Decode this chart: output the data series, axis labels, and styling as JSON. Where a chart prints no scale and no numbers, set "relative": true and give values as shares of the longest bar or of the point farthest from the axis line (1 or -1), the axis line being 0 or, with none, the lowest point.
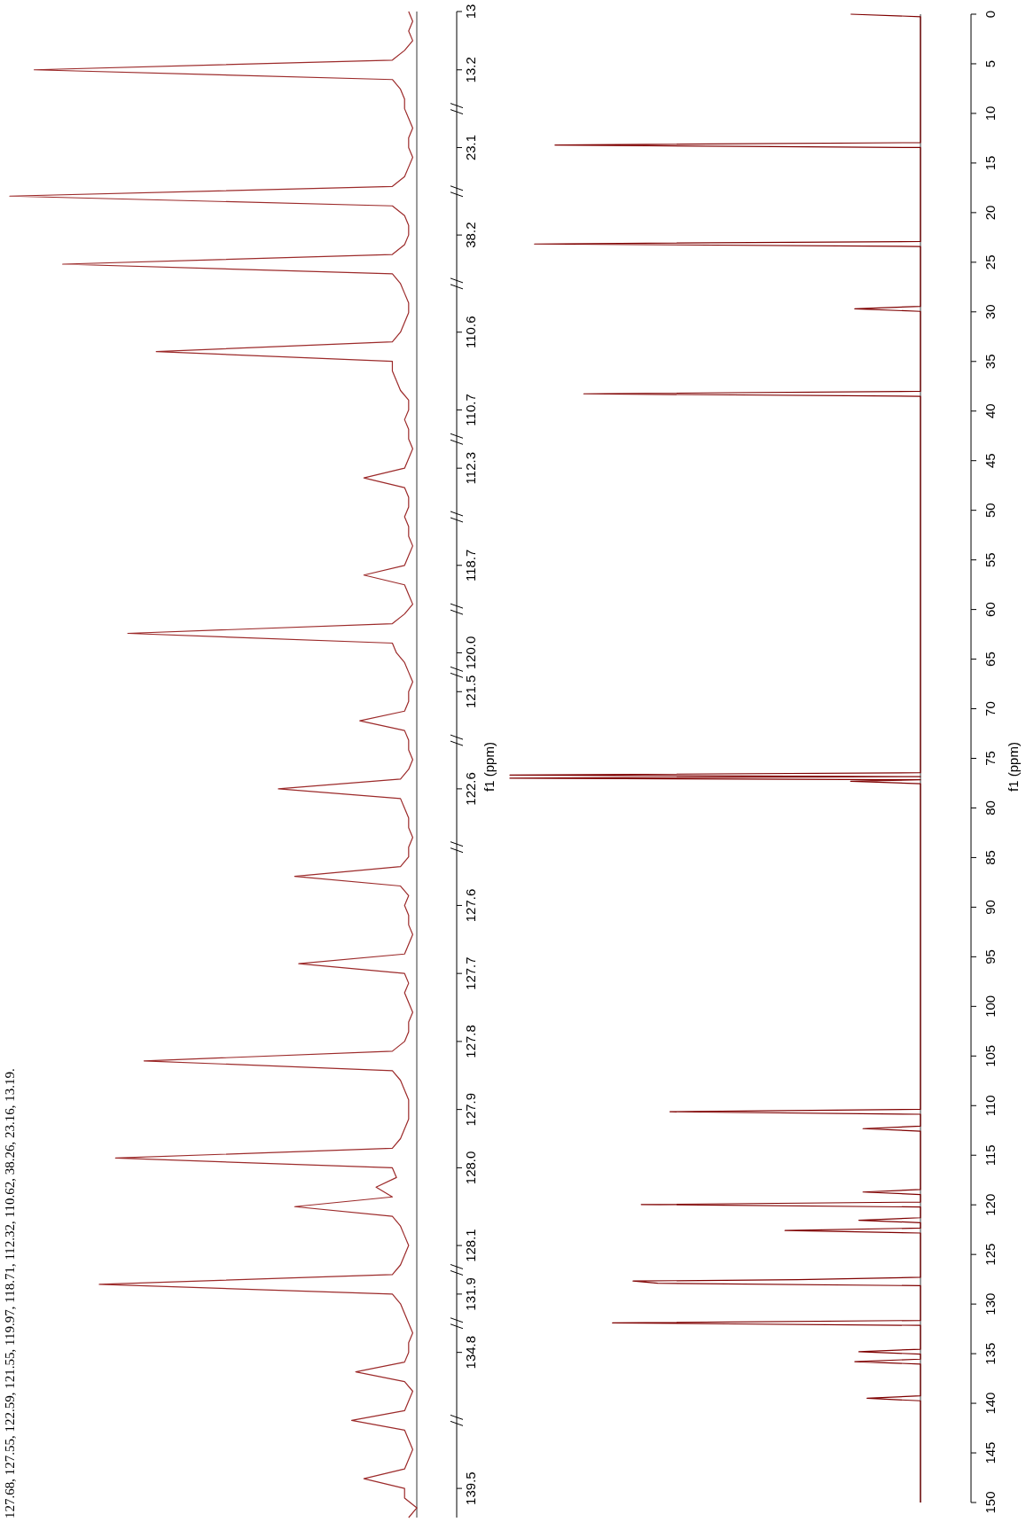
{
  "chart_data": [
    {
      "type": "line",
      "orientation": "horizontal",
      "relative": true,
      "ylabel": "f1 (ppm)",
      "color": "#9c2a2a",
      "annotations": [
        "127.68, 127.55, 122.59, 121.55, 119.97, 118.71, 112.32, 110.62, 38.26, 23.16, 13.19."
      ],
      "categories": [
        "13",
        null,
        null,
        null,
        null,
        null,
        "13.2",
        null,
        null,
        null,
        null,
        null,
        null,
        null,
        "23.1",
        null,
        null,
        null,
        null,
        null,
        null,
        null,
        null,
        "38.2",
        null,
        null,
        null,
        null,
        null,
        null,
        null,
        null,
        null,
        "110.6",
        null,
        null,
        null,
        null,
        null,
        null,
        null,
        "110.7",
        null,
        null,
        null,
        null,
        null,
        "112.3",
        null,
        null,
        null,
        null,
        null,
        null,
        null,
        null,
        null,
        "118.7",
        null,
        null,
        null,
        null,
        null,
        null,
        null,
        null,
        "120.0",
        null,
        null,
        null,
        "121.5",
        null,
        null,
        null,
        null,
        null,
        null,
        null,
        null,
        null,
        "122.6",
        null,
        null,
        null,
        null,
        null,
        null,
        null,
        null,
        null,
        null,
        null,
        "127.6",
        null,
        null,
        null,
        null,
        null,
        null,
        "127.7",
        null,
        null,
        null,
        null,
        null,
        null,
        "127.8",
        null,
        null,
        null,
        null,
        null,
        null,
        "127.9",
        null,
        null,
        null,
        null,
        null,
        "128.0",
        null,
        null,
        null,
        null,
        null,
        null,
        null,
        "128.1",
        null,
        null,
        null,
        null,
        "131.9",
        null,
        null,
        null,
        null,
        null,
        "134.8",
        null,
        null,
        null,
        null,
        null,
        null,
        null,
        null,
        null,
        null,
        null,
        null,
        null,
        "139.5",
        null,
        null,
        null
      ],
      "values": [
        -0.02,
        -0.01,
        -0.02,
        -0.01,
        -0.03,
        -0.06,
        -0.94,
        -0.06,
        -0.04,
        -0.03,
        -0.03,
        -0.02,
        -0.01,
        -0.02,
        -0.02,
        -0.01,
        -0.02,
        -0.03,
        -0.06,
        -1.0,
        -0.06,
        -0.03,
        -0.02,
        -0.02,
        -0.03,
        -0.06,
        -0.87,
        -0.06,
        -0.04,
        -0.03,
        -0.02,
        -0.02,
        -0.03,
        -0.04,
        -0.06,
        -0.64,
        -0.06,
        -0.06,
        -0.05,
        -0.04,
        -0.02,
        -0.02,
        -0.03,
        -0.02,
        -0.02,
        -0.01,
        -0.02,
        -0.03,
        -0.13,
        -0.03,
        -0.02,
        -0.02,
        -0.03,
        -0.02,
        -0.02,
        -0.01,
        -0.02,
        -0.03,
        -0.13,
        -0.03,
        -0.02,
        -0.01,
        -0.03,
        -0.06,
        -0.71,
        -0.06,
        -0.05,
        -0.03,
        -0.02,
        -0.01,
        -0.02,
        -0.02,
        -0.03,
        -0.14,
        -0.03,
        -0.02,
        -0.02,
        -0.01,
        -0.02,
        -0.04,
        -0.34,
        -0.04,
        -0.03,
        -0.02,
        -0.02,
        -0.01,
        -0.02,
        -0.02,
        -0.04,
        -0.3,
        -0.04,
        -0.02,
        -0.03,
        -0.02,
        -0.02,
        -0.01,
        -0.02,
        -0.03,
        -0.29,
        -0.03,
        -0.02,
        -0.03,
        -0.02,
        -0.01,
        -0.02,
        -0.02,
        -0.03,
        -0.06,
        -0.67,
        -0.06,
        -0.04,
        -0.03,
        -0.02,
        -0.02,
        -0.02,
        -0.03,
        -0.04,
        -0.06,
        -0.74,
        -0.06,
        -0.05,
        -0.1,
        -0.06,
        -0.3,
        -0.06,
        -0.04,
        -0.03,
        -0.02,
        -0.03,
        -0.04,
        -0.06,
        -0.78,
        -0.06,
        -0.04,
        -0.03,
        -0.02,
        -0.01,
        -0.02,
        -0.02,
        -0.03,
        -0.15,
        -0.03,
        -0.01,
        -0.02,
        -0.03,
        -0.16,
        -0.03,
        -0.02,
        -0.01,
        -0.02,
        -0.03,
        -0.13,
        -0.03,
        -0.03,
        0,
        -0.02
      ]
    },
    {
      "type": "line",
      "orientation": "horizontal",
      "relative": true,
      "ylabel": "f1 (ppm)",
      "color": "#7f0000",
      "ylim": [
        150,
        0
      ],
      "yticks": [
        0,
        5,
        10,
        15,
        20,
        25,
        30,
        35,
        40,
        45,
        50,
        55,
        60,
        65,
        70,
        75,
        80,
        85,
        90,
        95,
        100,
        105,
        110,
        115,
        120,
        125,
        130,
        135,
        140,
        145,
        150
      ],
      "x": [
        0,
        0.25,
        12.94,
        13.19,
        13.44,
        22.91,
        23.16,
        23.41,
        29.45,
        29.7,
        29.95,
        38.01,
        38.26,
        38.51,
        76.45,
        76.68,
        76.84,
        77.0,
        77.16,
        77.32,
        77.55,
        110.37,
        110.62,
        110.87,
        112.07,
        112.32,
        112.57,
        118.46,
        118.71,
        118.96,
        119.72,
        119.97,
        120.22,
        121.3,
        121.55,
        121.8,
        122.34,
        122.59,
        122.84,
        127.3,
        127.55,
        127.68,
        127.9,
        128.15,
        131.65,
        131.9,
        132.15,
        134.55,
        134.8,
        135.05,
        135.55,
        135.8,
        136.05,
        139.25,
        139.5,
        139.75,
        150
      ],
      "values": [
        -0.17,
        0,
        0,
        -0.89,
        0,
        0,
        -0.94,
        0,
        0,
        -0.16,
        0,
        0,
        -0.82,
        0,
        0,
        -1,
        0,
        -1,
        0,
        -0.17,
        0,
        0,
        -0.61,
        0,
        0,
        -0.14,
        0,
        0,
        -0.14,
        0,
        0,
        -0.68,
        0,
        0,
        -0.15,
        0,
        0,
        -0.33,
        0,
        0,
        -0.3,
        -0.7,
        -0.64,
        0,
        0,
        -0.75,
        0,
        0,
        -0.15,
        0,
        0,
        -0.16,
        0,
        0,
        -0.13,
        0,
        0
      ]
    }
  ]
}
